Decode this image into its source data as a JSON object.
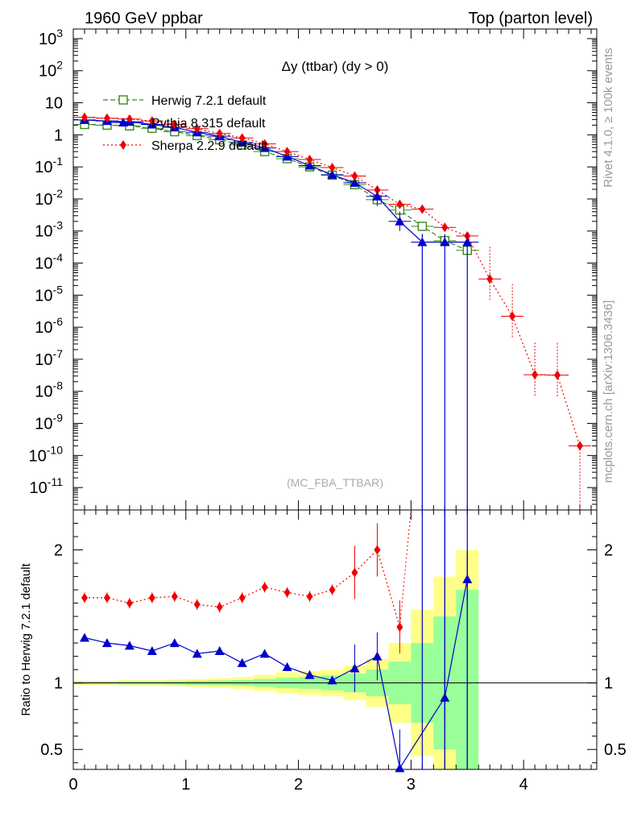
{
  "header": {
    "left": "1960 GeV ppbar",
    "right": "Top (parton level)"
  },
  "side": {
    "rivet": "Rivet 4.1.0, ≥ 100k events",
    "mcplots": "mcplots.cern.ch [arXiv:1306.3436]"
  },
  "chart_data": [
    {
      "type": "line",
      "title": "Δy (ttbar) (dy > 0)",
      "watermark": "(MC_FBA_TTBAR)",
      "xlabel": "",
      "ylabel": "",
      "xlim": [
        0,
        4.65
      ],
      "ylim_log10": [
        -11.7,
        3.3
      ],
      "y_tick_labels": [
        "10^3",
        "10^2",
        "10",
        "1",
        "10^-1",
        "10^-2",
        "10^-3",
        "10^-4",
        "10^-5",
        "10^-6",
        "10^-7",
        "10^-8",
        "10^-9",
        "10^-10",
        "10^-11"
      ],
      "x_ticks": [
        0,
        1,
        2,
        3,
        4
      ],
      "legend": [
        "Herwig 7.2.1 default",
        "Pythia 8.315 default",
        "Sherpa 2.2.9 default"
      ],
      "series": [
        {
          "name": "Herwig 7.2.1 default",
          "color": "#3a8a1a",
          "marker": "open-square",
          "x": [
            0.1,
            0.3,
            0.5,
            0.7,
            0.9,
            1.1,
            1.3,
            1.5,
            1.7,
            1.9,
            2.1,
            2.3,
            2.5,
            2.7,
            2.9,
            3.1,
            3.3,
            3.5
          ],
          "y": [
            2.1,
            2.0,
            1.9,
            1.6,
            1.25,
            0.95,
            0.7,
            0.48,
            0.3,
            0.18,
            0.1,
            0.055,
            0.028,
            0.0095,
            0.0045,
            0.0014,
            0.0005,
            0.00025
          ]
        },
        {
          "name": "Pythia 8.315 default",
          "color": "#0000cc",
          "marker": "filled-triangle",
          "x": [
            0.1,
            0.3,
            0.5,
            0.7,
            0.9,
            1.1,
            1.3,
            1.5,
            1.7,
            1.9,
            2.1,
            2.3,
            2.5,
            2.7,
            2.9,
            3.1,
            3.3,
            3.5
          ],
          "y": [
            2.9,
            2.7,
            2.55,
            2.1,
            1.7,
            1.2,
            0.9,
            0.58,
            0.39,
            0.21,
            0.11,
            0.057,
            0.032,
            0.012,
            0.002,
            0.00045,
            0.00045,
            0.00045
          ]
        },
        {
          "name": "Sherpa 2.2.9 default",
          "color": "#ee0000",
          "marker": "filled-diamond",
          "x": [
            0.1,
            0.3,
            0.5,
            0.7,
            0.9,
            1.1,
            1.3,
            1.5,
            1.7,
            1.9,
            2.1,
            2.3,
            2.5,
            2.7,
            2.9,
            3.1,
            3.3,
            3.5,
            3.7,
            3.9,
            4.1,
            4.3,
            4.5
          ],
          "y": [
            3.5,
            3.3,
            3.1,
            2.7,
            2.1,
            1.55,
            1.1,
            0.8,
            0.52,
            0.3,
            0.17,
            0.095,
            0.052,
            0.019,
            0.0068,
            0.0048,
            0.0013,
            0.0007,
            3.2e-05,
            2.2e-06,
            3.3e-08,
            3.2e-08,
            2e-10
          ]
        }
      ]
    },
    {
      "type": "line",
      "title": "",
      "xlabel": "",
      "ylabel": "Ratio to Herwig 7.2.1 default",
      "xlim": [
        0,
        4.65
      ],
      "ylim": [
        0.35,
        2.3
      ],
      "y_ticks": [
        0.5,
        1,
        2
      ],
      "y_tick_labels": [
        "0.5",
        "1",
        "2"
      ],
      "x_ticks": [
        0,
        1,
        2,
        3,
        4
      ],
      "x_tick_labels": [
        "0",
        "1",
        "2",
        "3",
        "4"
      ],
      "series": [
        {
          "name": "Pythia 8.315 default",
          "color": "#0000cc",
          "x": [
            0.1,
            0.3,
            0.5,
            0.7,
            0.9,
            1.1,
            1.3,
            1.5,
            1.7,
            1.9,
            2.1,
            2.3,
            2.5,
            2.7,
            2.9,
            3.3,
            3.5
          ],
          "y": [
            1.34,
            1.3,
            1.28,
            1.24,
            1.3,
            1.22,
            1.24,
            1.15,
            1.22,
            1.12,
            1.06,
            1.02,
            1.11,
            1.2,
            0.36,
            0.89,
            1.78
          ]
        },
        {
          "name": "Sherpa 2.2.9 default",
          "color": "#ee0000",
          "x": [
            0.1,
            0.3,
            0.5,
            0.7,
            0.9,
            1.1,
            1.3,
            1.5,
            1.7,
            1.9,
            2.1,
            2.3,
            2.5,
            2.7,
            2.9
          ],
          "y": [
            1.64,
            1.64,
            1.6,
            1.64,
            1.65,
            1.59,
            1.57,
            1.64,
            1.72,
            1.68,
            1.65,
            1.7,
            1.83,
            2.0,
            1.42
          ]
        }
      ]
    }
  ]
}
